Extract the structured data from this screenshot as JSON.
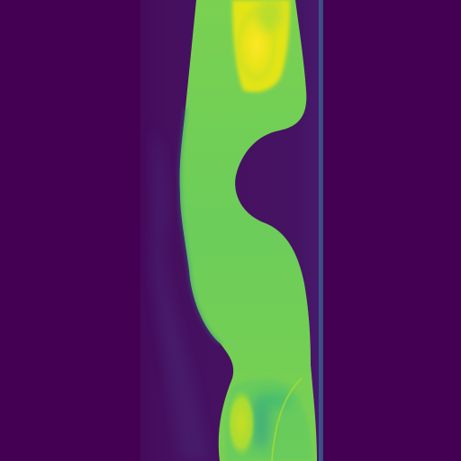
{
  "image": {
    "colormap": "viridis",
    "colors": {
      "background": "#440154",
      "strip_dark": "#46085c",
      "strip_mid": "#472a7a",
      "tissue_low": "#2a788e",
      "tissue_mid": "#7ad151",
      "tissue_high": "#fde725",
      "edge_line": "#3b528b"
    }
  }
}
